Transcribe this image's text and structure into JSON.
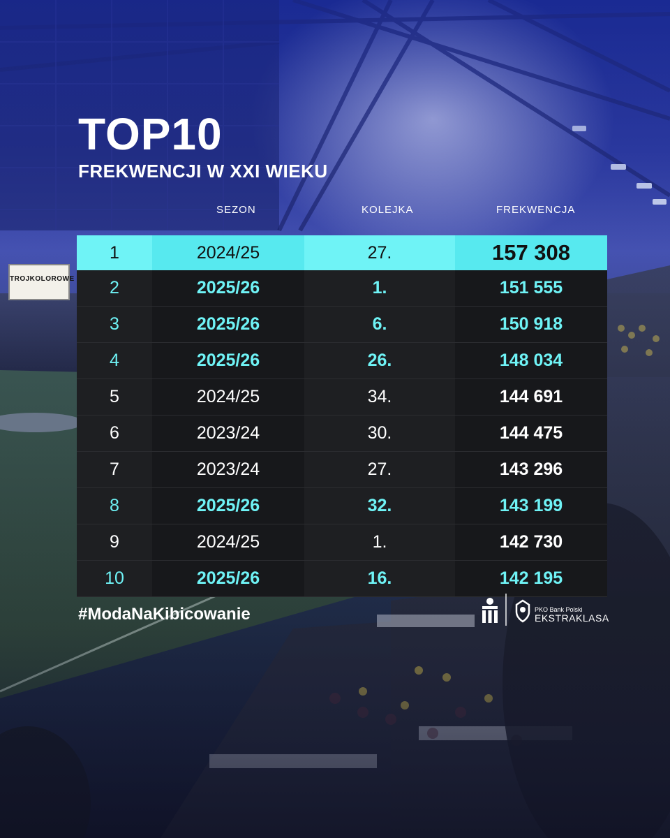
{
  "title": "TOP10",
  "subtitle": "FREKWENCJI W XXI WIEKU",
  "columns": {
    "season": "SEZON",
    "round": "KOLEJKA",
    "attendance": "FREKWENCJA"
  },
  "rows": [
    {
      "rank": "1",
      "season": "2024/25",
      "round": "27.",
      "attendance": "157 308",
      "highlight": "top"
    },
    {
      "rank": "2",
      "season": "2025/26",
      "round": "1.",
      "attendance": "151 555",
      "highlight": "cyan"
    },
    {
      "rank": "3",
      "season": "2025/26",
      "round": "6.",
      "attendance": "150 918",
      "highlight": "cyan"
    },
    {
      "rank": "4",
      "season": "2025/26",
      "round": "26.",
      "attendance": "148 034",
      "highlight": "cyan"
    },
    {
      "rank": "5",
      "season": "2024/25",
      "round": "34.",
      "attendance": "144 691",
      "highlight": "none"
    },
    {
      "rank": "6",
      "season": "2023/24",
      "round": "30.",
      "attendance": "144 475",
      "highlight": "none"
    },
    {
      "rank": "7",
      "season": "2023/24",
      "round": "27.",
      "attendance": "143 296",
      "highlight": "none"
    },
    {
      "rank": "8",
      "season": "2025/26",
      "round": "32.",
      "attendance": "143 199",
      "highlight": "cyan"
    },
    {
      "rank": "9",
      "season": "2024/25",
      "round": "1.",
      "attendance": "142 730",
      "highlight": "none"
    },
    {
      "rank": "10",
      "season": "2025/26",
      "round": "16.",
      "attendance": "142 195",
      "highlight": "cyan"
    }
  ],
  "hashtag": "#ModaNaKibicowanie",
  "sponsor": {
    "small": "PKO Bank Polski",
    "big": "EKSTRAKLASA"
  },
  "stadium_banner": "TROJKOLOROWE",
  "colors": {
    "accent": "#6ff3f6",
    "row_dark": "#1e1f22",
    "row_darker": "#17181b"
  }
}
